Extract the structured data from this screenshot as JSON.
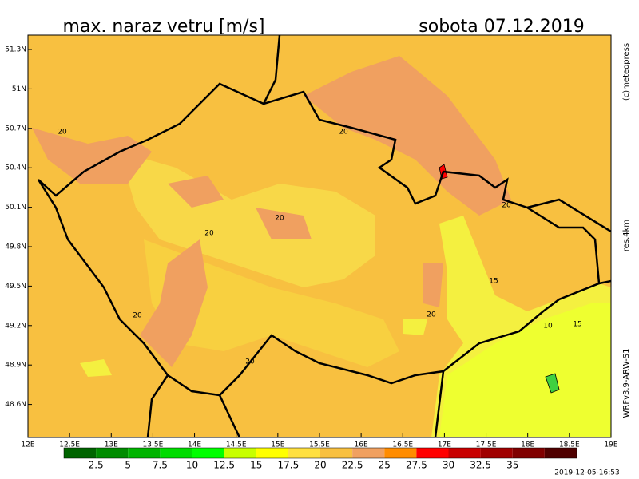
{
  "header": {
    "title": "max. naraz vetru [m/s]",
    "date": "sobota 07.12.2019"
  },
  "side_labels": {
    "copyright": "(c)meteopress",
    "resolution": "res.4km",
    "model": "WRFv3.9-ARW-S1"
  },
  "footer": {
    "timestamp": "2019-12-05-16:53"
  },
  "lat_labels": [
    "51.3N",
    "51N",
    "50.7N",
    "50.4N",
    "50.1N",
    "49.8N",
    "49.5N",
    "49.2N",
    "48.9N",
    "48.6N"
  ],
  "lon_labels": [
    "12E",
    "12.5E",
    "13E",
    "13.5E",
    "14E",
    "14.5E",
    "15E",
    "15.5E",
    "16E",
    "16.5E",
    "17E",
    "17.5E",
    "18E",
    "18.5E",
    "19E"
  ],
  "contour_labels": [
    "20",
    "20",
    "20",
    "20",
    "20",
    "20",
    "20",
    "20",
    "15",
    "10",
    "15"
  ],
  "colorbar": {
    "labels": [
      "2.5",
      "5",
      "7.5",
      "10",
      "12.5",
      "15",
      "17.5",
      "20",
      "22.5",
      "25",
      "27.5",
      "30",
      "32.5",
      "35"
    ],
    "colors": [
      "#006400",
      "#008c00",
      "#00b400",
      "#00dc00",
      "#00ff00",
      "#c8ff00",
      "#ffff00",
      "#ffe040",
      "#f8c040",
      "#f0a060",
      "#ff8c00",
      "#ff0000",
      "#c80000",
      "#a00000",
      "#800000",
      "#500000"
    ]
  }
}
